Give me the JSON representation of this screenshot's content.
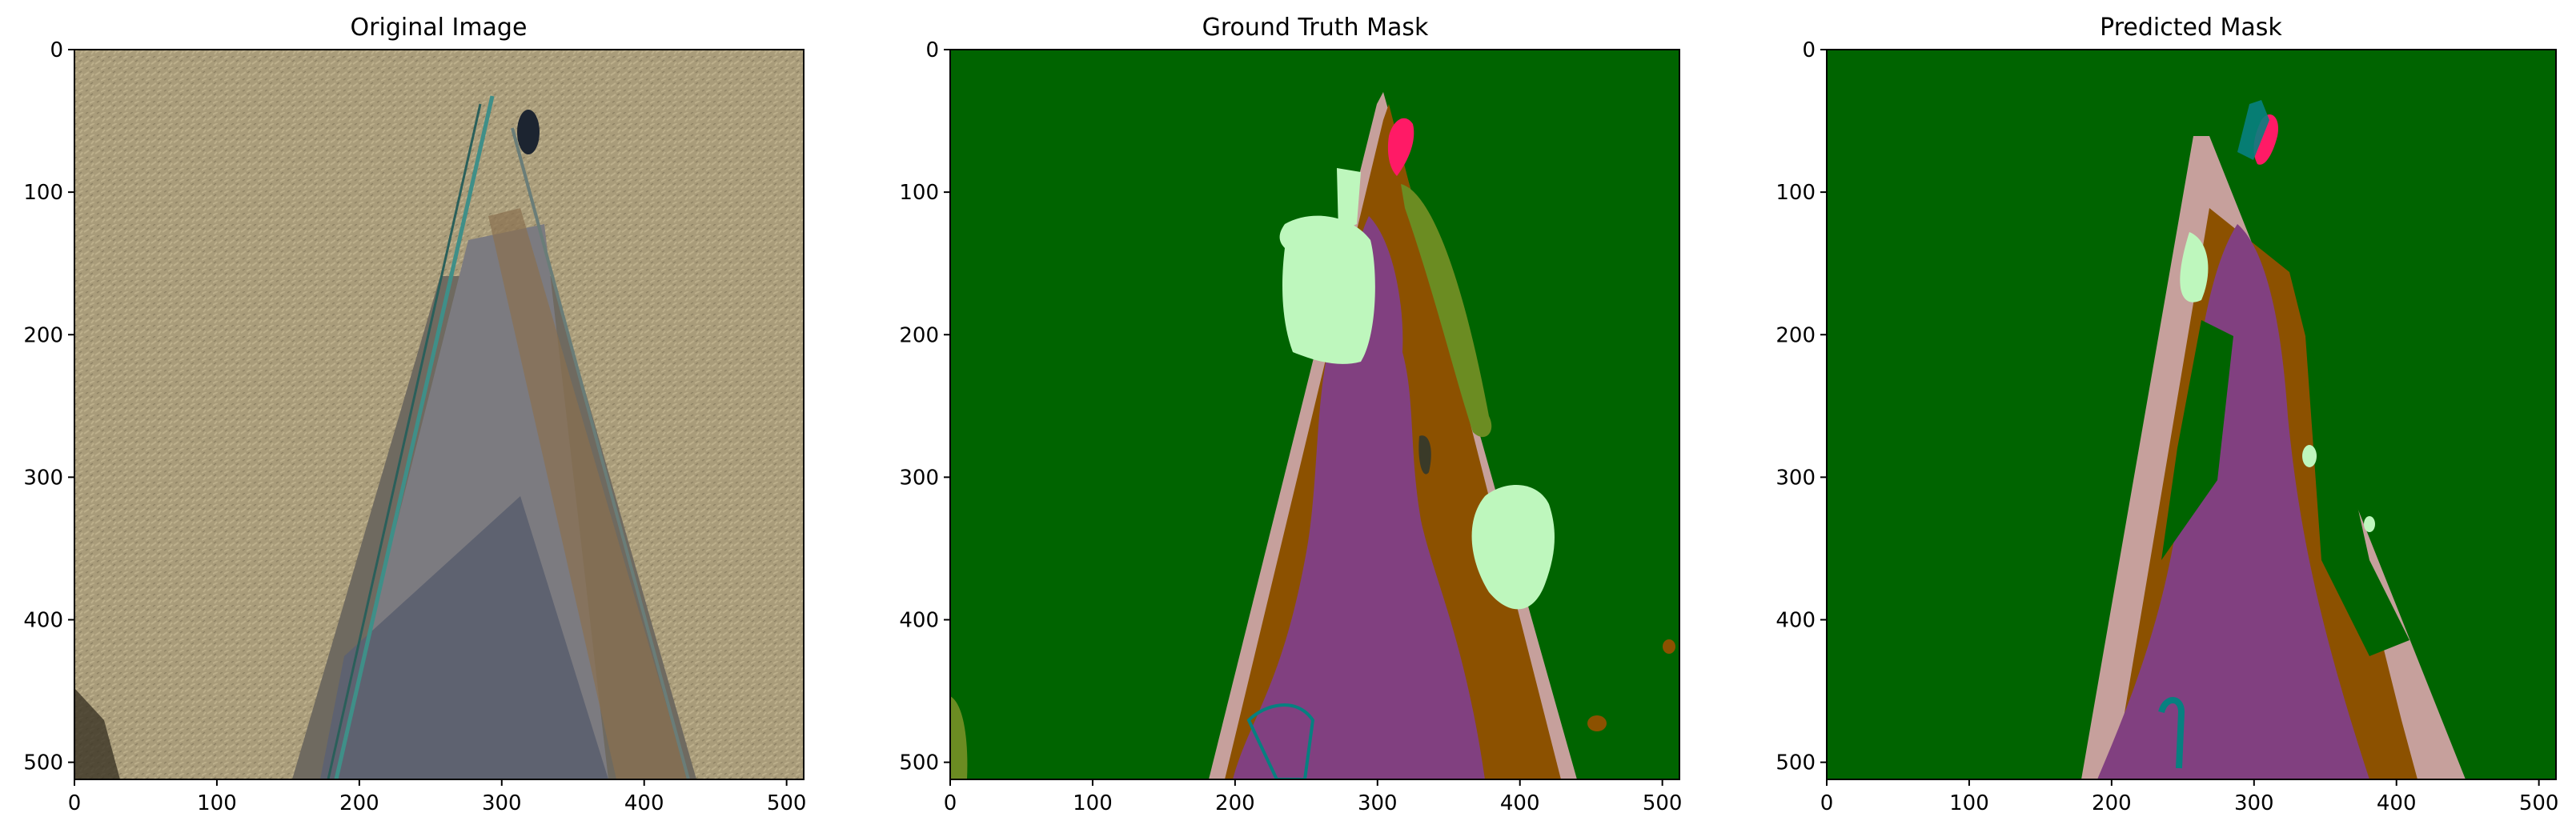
{
  "chart_data": [
    {
      "type": "heatmap",
      "title": "Original Image",
      "xticks": [
        0,
        100,
        200,
        300,
        400,
        500
      ],
      "yticks": [
        0,
        100,
        200,
        300,
        400,
        500
      ],
      "xlim": [
        0,
        512
      ],
      "ylim": [
        512,
        0
      ],
      "image": "aerial photo: dry grass field with paved path and fence line"
    },
    {
      "type": "heatmap",
      "title": "Ground Truth Mask",
      "xticks": [
        0,
        100,
        200,
        300,
        400,
        500
      ],
      "yticks": [
        0,
        100,
        200,
        300,
        400,
        500
      ],
      "xlim": [
        0,
        512
      ],
      "ylim": [
        512,
        0
      ]
    },
    {
      "type": "heatmap",
      "title": "Predicted Mask",
      "xticks": [
        0,
        100,
        200,
        300,
        400,
        500
      ],
      "yticks": [
        0,
        100,
        200,
        300,
        400,
        500
      ],
      "xlim": [
        0,
        512
      ],
      "ylim": [
        512,
        0
      ]
    }
  ],
  "palette": {
    "grass": "#006400",
    "path": "#814080",
    "dirt": "#8c5100",
    "fence": "#c6a09c",
    "bush": "#bef7bd",
    "vegetation": "#6b8c22",
    "person": "#ff1a66",
    "teal": "#078080",
    "dark": "#3a3a28"
  }
}
